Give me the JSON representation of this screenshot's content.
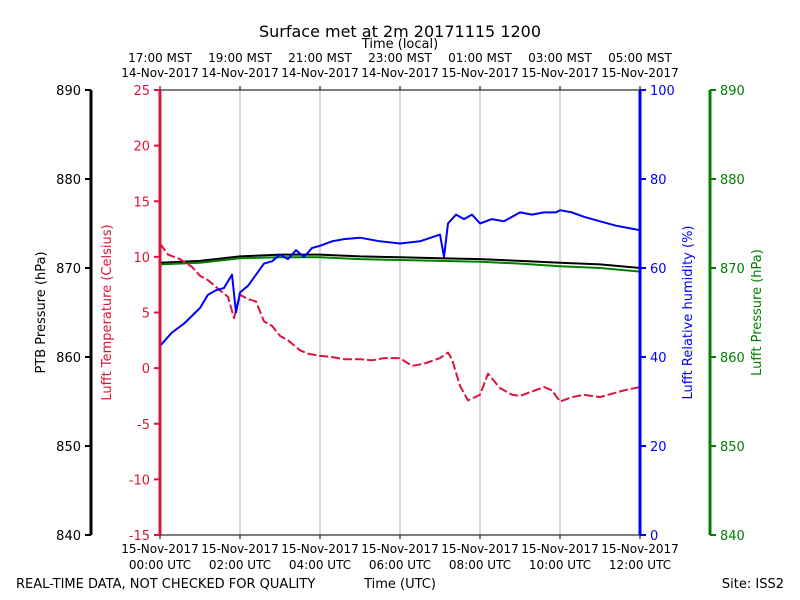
{
  "chart_data": {
    "type": "line",
    "title": "Surface met at 2m 20171115 1200",
    "top_axis_label": "Time (local)",
    "xlabel": "Time (UTC)",
    "footer_left": "REAL-TIME DATA, NOT CHECKED FOR QUALITY",
    "footer_right": "Site: ISS2",
    "xlim": [
      0,
      12
    ],
    "x_ticks": [
      0,
      2,
      4,
      6,
      8,
      10,
      12
    ],
    "x_tick_labels_bottom": [
      [
        "15-Nov-2017",
        "00:00 UTC"
      ],
      [
        "15-Nov-2017",
        "02:00 UTC"
      ],
      [
        "15-Nov-2017",
        "04:00 UTC"
      ],
      [
        "15-Nov-2017",
        "06:00 UTC"
      ],
      [
        "15-Nov-2017",
        "08:00 UTC"
      ],
      [
        "15-Nov-2017",
        "10:00 UTC"
      ],
      [
        "15-Nov-2017",
        "12:00 UTC"
      ]
    ],
    "x_tick_labels_top": [
      [
        "17:00 MST",
        "14-Nov-2017"
      ],
      [
        "19:00 MST",
        "14-Nov-2017"
      ],
      [
        "21:00 MST",
        "14-Nov-2017"
      ],
      [
        "23:00 MST",
        "14-Nov-2017"
      ],
      [
        "01:00 MST",
        "15-Nov-2017"
      ],
      [
        "03:00 MST",
        "15-Nov-2017"
      ],
      [
        "05:00 MST",
        "15-Nov-2017"
      ]
    ],
    "axes": {
      "ptb": {
        "label": "PTB Pressure (hPa)",
        "ylim": [
          840,
          890
        ],
        "ticks": [
          840,
          850,
          860,
          870,
          880,
          890
        ],
        "color": "#000000"
      },
      "temp": {
        "label": "Lufft Temperature (Celsius)",
        "ylim": [
          -15,
          25
        ],
        "ticks": [
          -15,
          -10,
          -5,
          0,
          5,
          10,
          15,
          20,
          25
        ],
        "color": "#dc143c"
      },
      "rh": {
        "label": "Lufft Relative humidity (%)",
        "ylim": [
          0,
          100
        ],
        "ticks": [
          0,
          20,
          40,
          60,
          80,
          100
        ],
        "color": "#0000ff"
      },
      "lufft_p": {
        "label": "Lufft Pressure (hPa)",
        "ylim": [
          840,
          890
        ],
        "ticks": [
          840,
          850,
          860,
          870,
          880,
          890
        ],
        "color": "#008000"
      }
    },
    "series": [
      {
        "name": "PTB Pressure",
        "axis": "ptb",
        "color": "#000000",
        "x": [
          0,
          1,
          2,
          3,
          4,
          5,
          6,
          7,
          8,
          9,
          10,
          11,
          12
        ],
        "values": [
          870.6,
          870.8,
          871.3,
          871.5,
          871.5,
          871.3,
          871.2,
          871.1,
          871.0,
          870.8,
          870.6,
          870.4,
          870.0
        ]
      },
      {
        "name": "Lufft Pressure",
        "axis": "lufft_p",
        "color": "#008000",
        "x": [
          0,
          1,
          2,
          3,
          4,
          5,
          6,
          7,
          8,
          9,
          10,
          11,
          12
        ],
        "values": [
          870.4,
          870.6,
          871.1,
          871.2,
          871.2,
          871.0,
          870.9,
          870.8,
          870.7,
          870.5,
          870.2,
          870.0,
          869.6
        ]
      },
      {
        "name": "Lufft Temperature",
        "axis": "temp",
        "color": "#dc143c",
        "dashed": true,
        "x": [
          0,
          0.2,
          0.5,
          0.8,
          1.0,
          1.2,
          1.5,
          1.7,
          1.85,
          2.0,
          2.2,
          2.4,
          2.6,
          2.8,
          3.0,
          3.2,
          3.5,
          3.7,
          4.0,
          4.3,
          4.6,
          5.0,
          5.3,
          5.6,
          6.0,
          6.3,
          6.6,
          7.0,
          7.2,
          7.3,
          7.5,
          7.7,
          8.0,
          8.2,
          8.5,
          8.8,
          9.0,
          9.3,
          9.6,
          9.8,
          10.0,
          10.3,
          10.6,
          11.0,
          11.3,
          11.6,
          12.0
        ],
        "values": [
          11.2,
          10.2,
          9.8,
          9.1,
          8.3,
          7.9,
          7.0,
          6.4,
          4.5,
          6.6,
          6.2,
          6.0,
          4.2,
          3.8,
          2.9,
          2.5,
          1.6,
          1.3,
          1.1,
          1.0,
          0.8,
          0.8,
          0.7,
          0.9,
          0.9,
          0.2,
          0.4,
          0.9,
          1.4,
          0.8,
          -1.6,
          -2.9,
          -2.4,
          -0.5,
          -1.8,
          -2.4,
          -2.5,
          -2.1,
          -1.7,
          -2.0,
          -3.0,
          -2.6,
          -2.4,
          -2.6,
          -2.3,
          -2.0,
          -1.7
        ]
      },
      {
        "name": "Lufft Relative humidity",
        "axis": "rh",
        "color": "#0000ff",
        "x": [
          0,
          0.3,
          0.6,
          1.0,
          1.2,
          1.4,
          1.6,
          1.8,
          1.9,
          2.0,
          2.2,
          2.4,
          2.6,
          2.8,
          3.0,
          3.2,
          3.4,
          3.6,
          3.8,
          4.0,
          4.3,
          4.6,
          5.0,
          5.5,
          6.0,
          6.5,
          7.0,
          7.1,
          7.2,
          7.4,
          7.6,
          7.8,
          8.0,
          8.3,
          8.6,
          9.0,
          9.3,
          9.6,
          9.9,
          10.0,
          10.3,
          10.6,
          11.0,
          11.4,
          12.0
        ],
        "values": [
          42.5,
          45.5,
          47.5,
          51.0,
          54.0,
          55.0,
          55.5,
          58.5,
          50.0,
          54.5,
          56.0,
          58.5,
          61.0,
          61.5,
          63.0,
          62.0,
          64.0,
          62.5,
          64.5,
          65.0,
          66.0,
          66.5,
          66.8,
          66.0,
          65.5,
          66.0,
          67.5,
          62.5,
          70.0,
          72.0,
          71.0,
          72.0,
          70.0,
          71.0,
          70.5,
          72.5,
          72.0,
          72.5,
          72.5,
          73.0,
          72.5,
          71.5,
          70.5,
          69.5,
          68.5
        ]
      }
    ]
  }
}
